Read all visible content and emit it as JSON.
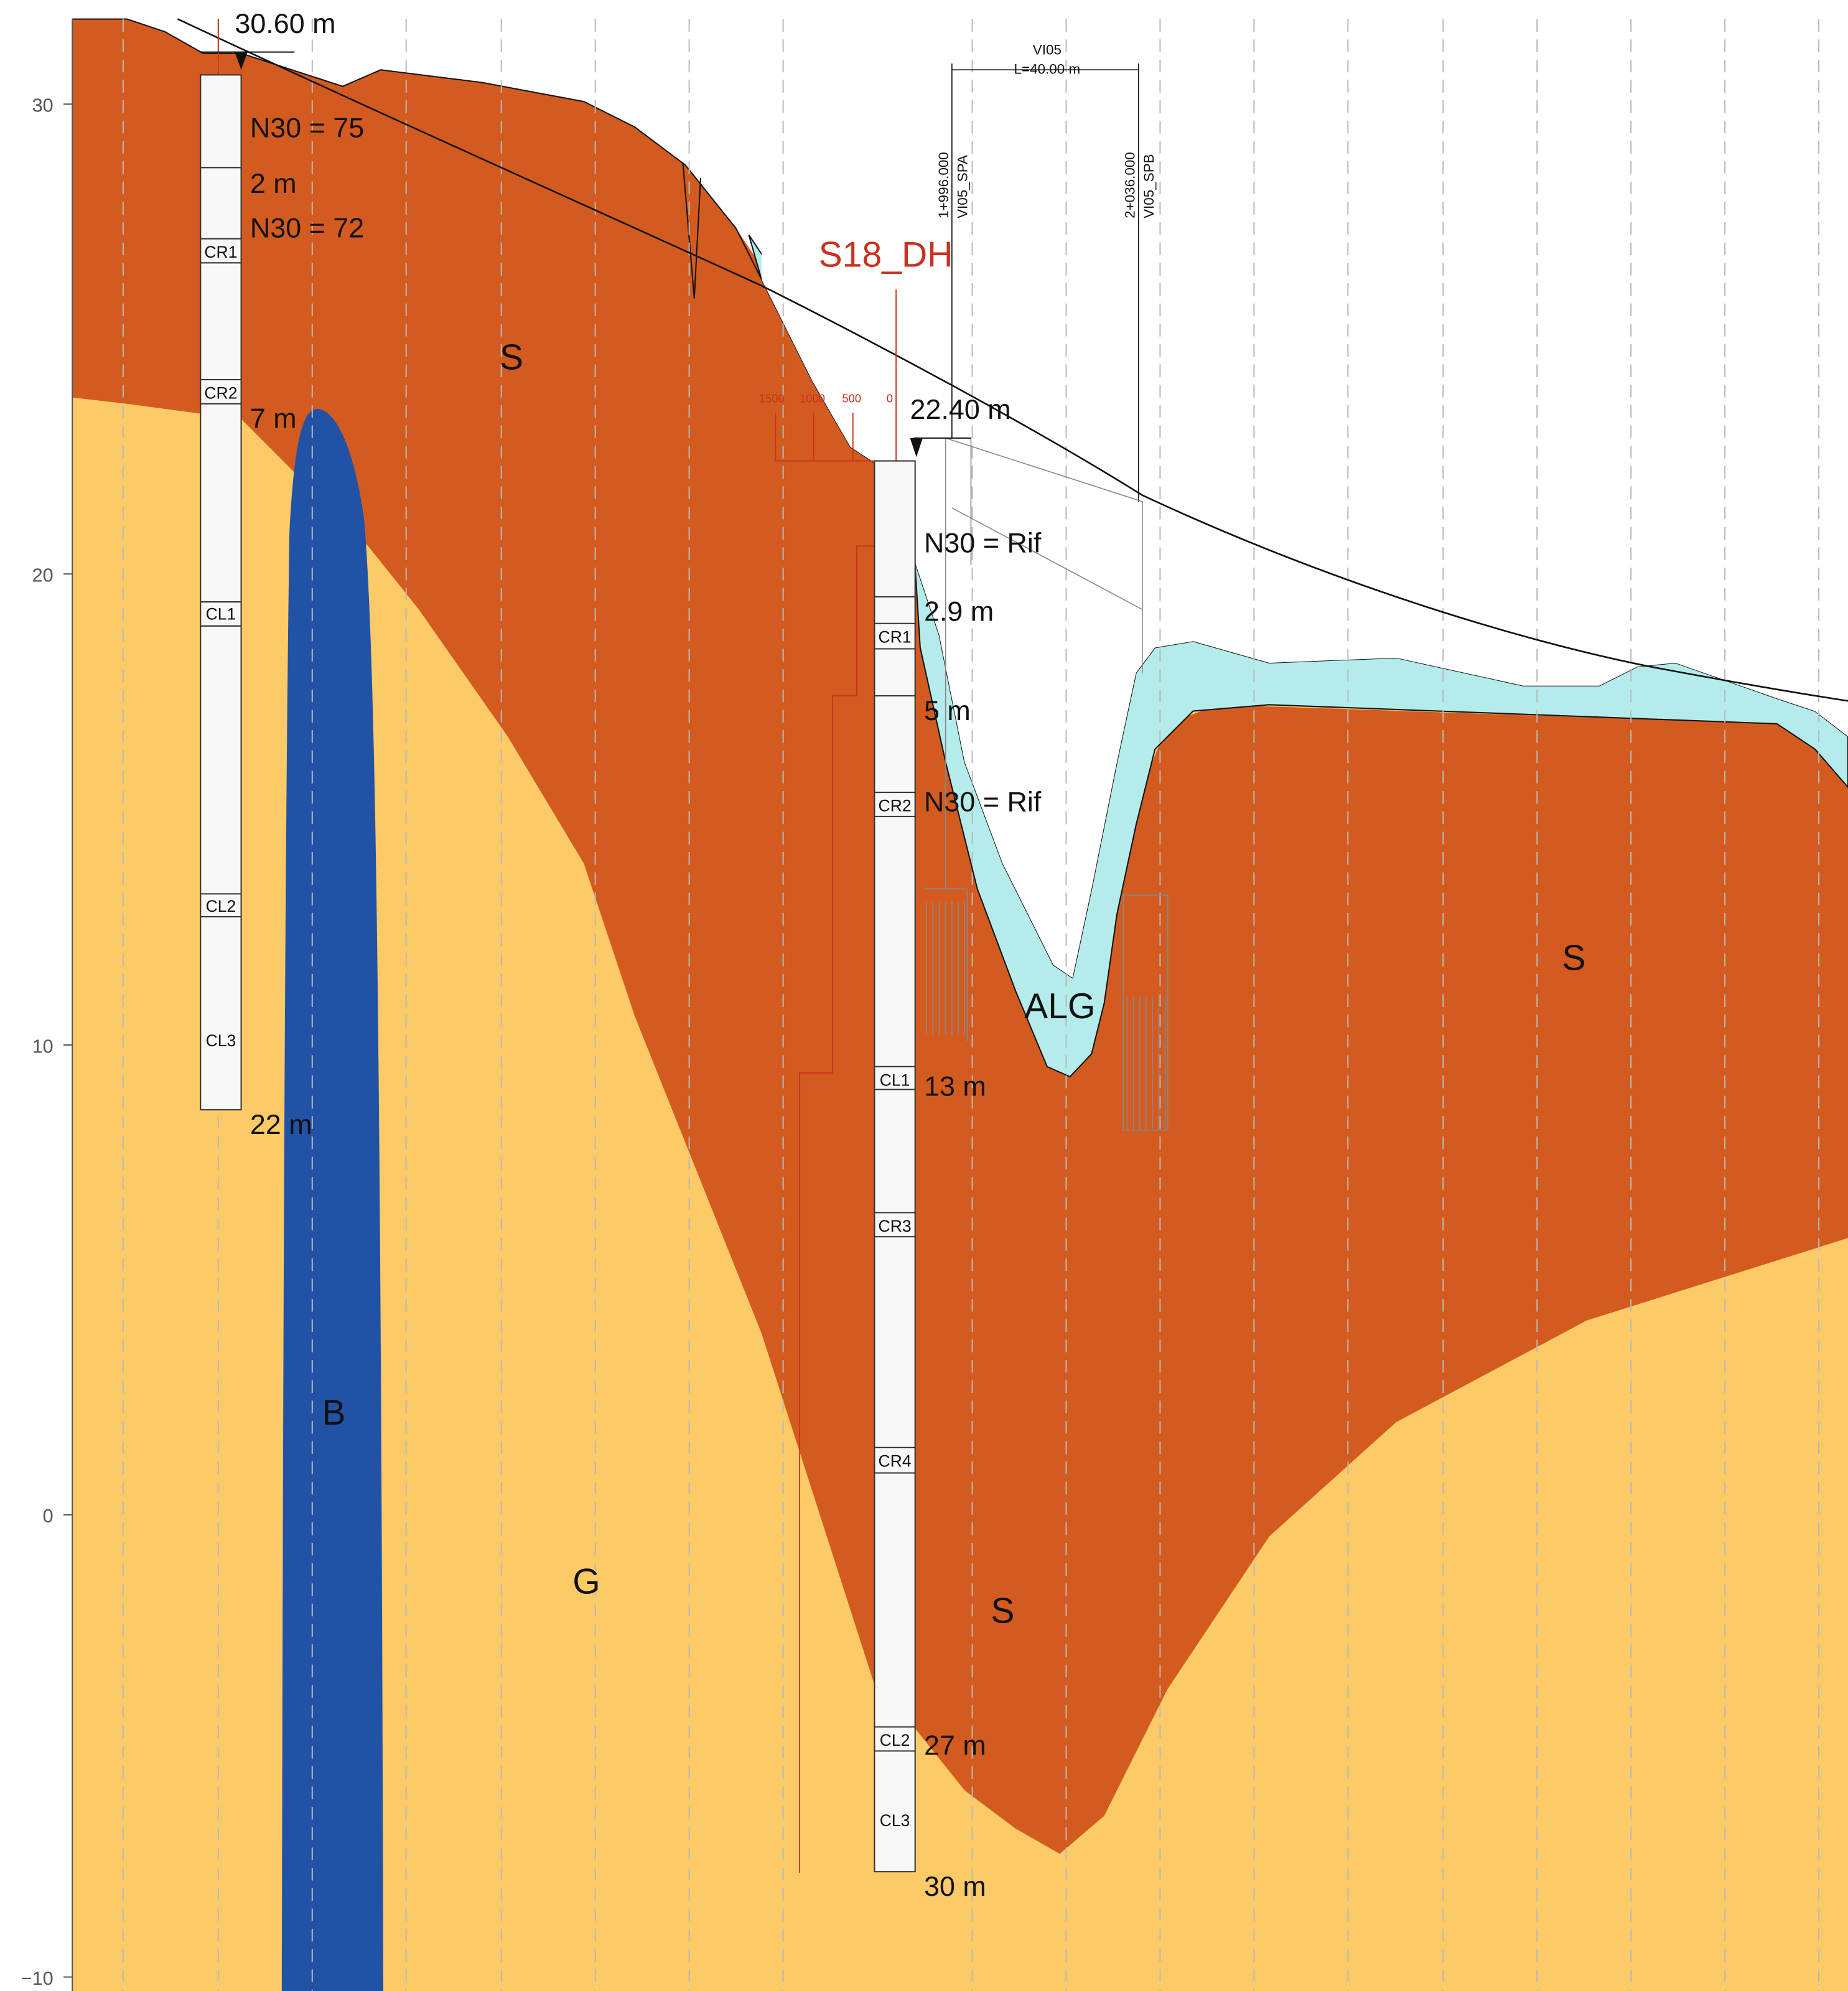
{
  "axis": {
    "ticks": [
      "30",
      "20",
      "10",
      "0",
      "−10"
    ]
  },
  "boreholes": [
    {
      "elevation": "30.60 m",
      "annotations": [
        "N30 = 75",
        "2 m",
        "N30 = 72",
        "7 m",
        "22 m"
      ],
      "samples": [
        "CR1",
        "CR2",
        "CL1",
        "CL2",
        "CL3"
      ]
    },
    {
      "name": "S18_DH",
      "elevation": "22.40 m",
      "scale": [
        "1500",
        "1000",
        "500",
        "0"
      ],
      "annotations": [
        "N30 = Rif",
        "2.9 m",
        "5 m",
        "N30 = Rif",
        "13 m",
        "27 m",
        "30 m"
      ],
      "samples": [
        "CR1",
        "CR2",
        "CL1",
        "CR3",
        "CR4",
        "CL2",
        "CL3"
      ]
    }
  ],
  "layers": [
    "S",
    "S",
    "ALG",
    "B",
    "G",
    "S"
  ],
  "bridge": {
    "name": "VI05",
    "length": "L=40.00 m",
    "supports": [
      {
        "station": "1+996.000",
        "name": "VI05_SPA"
      },
      {
        "station": "2+036.000",
        "name": "VI05_SPB"
      }
    ]
  }
}
